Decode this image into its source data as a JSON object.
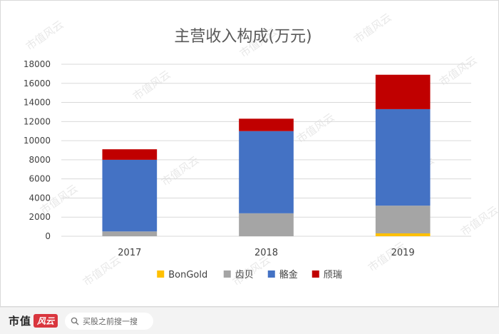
{
  "watermark": "市值风云",
  "chart_data": {
    "type": "bar",
    "stacked": true,
    "title": "主营收入构成(万元)",
    "categories": [
      "2017",
      "2018",
      "2019"
    ],
    "series": [
      {
        "name": "BonGold",
        "color": "#FFC000",
        "values": [
          0,
          0,
          300
        ]
      },
      {
        "name": "齿贝",
        "color": "#A5A5A5",
        "values": [
          500,
          2400,
          2900
        ]
      },
      {
        "name": "骼金",
        "color": "#4472C4",
        "values": [
          7500,
          8600,
          10100
        ]
      },
      {
        "name": "颀瑞",
        "color": "#C00000",
        "values": [
          1100,
          1300,
          3600
        ]
      }
    ],
    "ylim": [
      0,
      18000
    ],
    "yticks": [
      "0",
      "2000",
      "4000",
      "6000",
      "8000",
      "10000",
      "12000",
      "14000",
      "16000",
      "18000"
    ],
    "grid": true,
    "legend_position": "bottom"
  },
  "footer": {
    "brand": "市值",
    "brand_badge": "风云",
    "search_placeholder": "买股之前搜一搜"
  }
}
